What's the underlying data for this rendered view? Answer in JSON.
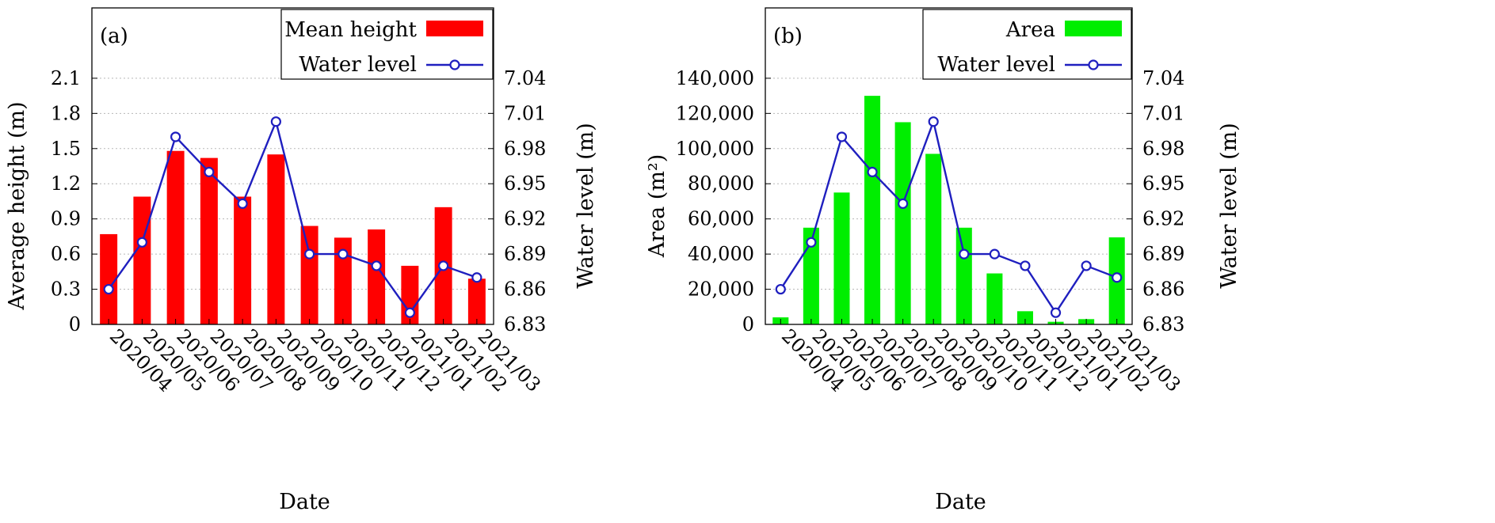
{
  "chart_data": [
    {
      "id": "a",
      "type": "bar+line",
      "panel_label": "(a)",
      "categories": [
        "2020/04",
        "2020/05",
        "2020/06",
        "2020/07",
        "2020/08",
        "2020/09",
        "2020/10",
        "2020/11",
        "2020/12",
        "2021/01",
        "2021/02",
        "2021/03"
      ],
      "series": [
        {
          "name": "Mean height",
          "kind": "bar",
          "axis": "left",
          "color": "#ff0000",
          "values": [
            0.77,
            1.09,
            1.48,
            1.42,
            1.09,
            1.45,
            0.84,
            0.74,
            0.81,
            0.5,
            1.0,
            0.39
          ]
        },
        {
          "name": "Water level",
          "kind": "line",
          "axis": "right",
          "color": "#1f1fbf",
          "values": [
            6.86,
            6.9,
            6.99,
            6.96,
            6.933,
            7.003,
            6.89,
            6.89,
            6.88,
            6.84,
            6.88,
            6.87
          ]
        }
      ],
      "xlabel": "Date",
      "ylabel": "Average height (m)",
      "y2label": "Water level (m)",
      "ylim": [
        0,
        2.7
      ],
      "yticks": [
        0,
        0.3,
        0.6,
        0.9,
        1.2,
        1.5,
        1.8,
        2.1
      ],
      "ytick_labels": [
        "0",
        "0.3",
        "0.6",
        "0.9",
        "1.2",
        "1.5",
        "1.8",
        "2.1"
      ],
      "y2lim": [
        6.83,
        7.1
      ],
      "y2ticks": [
        6.83,
        6.86,
        6.89,
        6.92,
        6.95,
        6.98,
        7.01,
        7.04
      ],
      "y2tick_labels": [
        "6.83",
        "6.86",
        "6.89",
        "6.92",
        "6.95",
        "6.98",
        "7.01",
        "7.04"
      ],
      "grid": true,
      "legend_position": "top-right"
    },
    {
      "id": "b",
      "type": "bar+line",
      "panel_label": "(b)",
      "categories": [
        "2020/04",
        "2020/05",
        "2020/06",
        "2020/07",
        "2020/08",
        "2020/09",
        "2020/10",
        "2020/11",
        "2020/12",
        "2021/01",
        "2021/02",
        "2021/03"
      ],
      "series": [
        {
          "name": "Area",
          "kind": "bar",
          "axis": "left",
          "color": "#00ee00",
          "values": [
            4000,
            55000,
            75000,
            130000,
            115000,
            97000,
            55000,
            29000,
            7500,
            1500,
            3000,
            49500
          ]
        },
        {
          "name": "Water level",
          "kind": "line",
          "axis": "right",
          "color": "#1f1fbf",
          "values": [
            6.86,
            6.9,
            6.99,
            6.96,
            6.933,
            7.003,
            6.89,
            6.89,
            6.88,
            6.84,
            6.88,
            6.87
          ]
        }
      ],
      "xlabel": "Date",
      "ylabel": "Area (m²)",
      "y2label": "Water level (m)",
      "ylim": [
        0,
        180000
      ],
      "yticks": [
        0,
        20000,
        40000,
        60000,
        80000,
        100000,
        120000,
        140000
      ],
      "ytick_labels": [
        "0",
        "20,000",
        "40,000",
        "60,000",
        "80,000",
        "100,000",
        "120,000",
        "140,000"
      ],
      "y2lim": [
        6.83,
        7.1
      ],
      "y2ticks": [
        6.83,
        6.86,
        6.89,
        6.92,
        6.95,
        6.98,
        7.01,
        7.04
      ],
      "y2tick_labels": [
        "6.83",
        "6.86",
        "6.89",
        "6.92",
        "6.95",
        "6.98",
        "7.01",
        "7.04"
      ],
      "grid": true,
      "legend_position": "top-right"
    }
  ]
}
